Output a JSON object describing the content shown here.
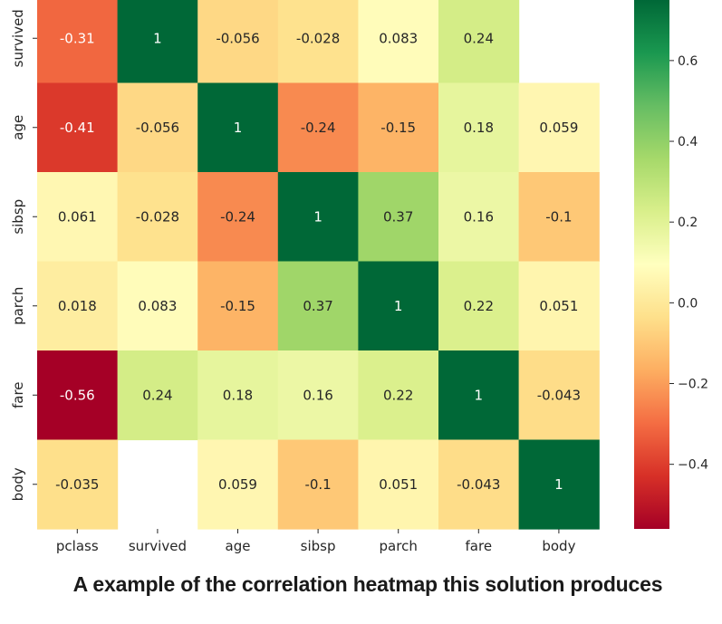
{
  "chart_data": {
    "type": "heatmap",
    "title": "",
    "xlabel": "",
    "ylabel": "",
    "columns": [
      "pclass",
      "survived",
      "age",
      "sibsp",
      "parch",
      "fare",
      "body"
    ],
    "rows": [
      "survived",
      "age",
      "sibsp",
      "parch",
      "fare",
      "body"
    ],
    "values": [
      [
        "-0.31",
        "1",
        "-0.056",
        "-0.028",
        "0.083",
        "0.24",
        null
      ],
      [
        "-0.41",
        "-0.056",
        "1",
        "-0.24",
        "-0.15",
        "0.18",
        "0.059"
      ],
      [
        "0.061",
        "-0.028",
        "-0.24",
        "1",
        "0.37",
        "0.16",
        "-0.1"
      ],
      [
        "0.018",
        "0.083",
        "-0.15",
        "0.37",
        "1",
        "0.22",
        "0.051"
      ],
      [
        "-0.56",
        "0.24",
        "0.18",
        "0.16",
        "0.22",
        "1",
        "-0.043"
      ],
      [
        "-0.035",
        null,
        "0.059",
        "-0.1",
        "0.051",
        "-0.043",
        "1"
      ]
    ],
    "colormap": "RdYlGn",
    "vmin": -0.56,
    "vmax": 0.75,
    "colorbar": {
      "ticks": [
        0.6,
        0.4,
        0.2,
        0.0,
        -0.2,
        -0.4
      ],
      "tick_labels": [
        "0.6",
        "0.4",
        "0.2",
        "0.0",
        "−0.2",
        "−0.4"
      ]
    }
  },
  "caption": "A example of the correlation heatmap this solution produces"
}
